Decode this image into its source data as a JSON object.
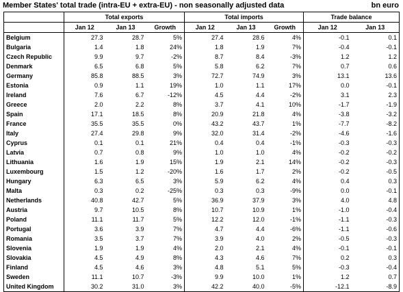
{
  "title": "Member States' total trade (intra-EU + extra-EU) - non seasonally adjusted data",
  "units": "bn euro",
  "groups": {
    "exports": "Total exports",
    "imports": "Total imports",
    "balance": "Trade balance"
  },
  "subheaders": {
    "jan12": "Jan 12",
    "jan13": "Jan 13",
    "growth": "Growth"
  },
  "rows": [
    {
      "country": "Belgium",
      "ex12": "27.3",
      "ex13": "28.7",
      "exg": "5%",
      "im12": "27.4",
      "im13": "28.6",
      "img": "4%",
      "tb12": "-0.1",
      "tb13": "0.1"
    },
    {
      "country": "Bulgaria",
      "ex12": "1.4",
      "ex13": "1.8",
      "exg": "24%",
      "im12": "1.8",
      "im13": "1.9",
      "img": "7%",
      "tb12": "-0.4",
      "tb13": "-0.1"
    },
    {
      "country": "Czech Republic",
      "ex12": "9.9",
      "ex13": "9.7",
      "exg": "-2%",
      "im12": "8.7",
      "im13": "8.4",
      "img": "-3%",
      "tb12": "1.2",
      "tb13": "1.2"
    },
    {
      "country": "Denmark",
      "ex12": "6.5",
      "ex13": "6.8",
      "exg": "5%",
      "im12": "5.8",
      "im13": "6.2",
      "img": "7%",
      "tb12": "0.7",
      "tb13": "0.6"
    },
    {
      "country": "Germany",
      "ex12": "85.8",
      "ex13": "88.5",
      "exg": "3%",
      "im12": "72.7",
      "im13": "74.9",
      "img": "3%",
      "tb12": "13.1",
      "tb13": "13.6"
    },
    {
      "country": "Estonia",
      "ex12": "0.9",
      "ex13": "1.1",
      "exg": "19%",
      "im12": "1.0",
      "im13": "1.1",
      "img": "17%",
      "tb12": "0.0",
      "tb13": "-0.1"
    },
    {
      "country": "Ireland",
      "ex12": "7.6",
      "ex13": "6.7",
      "exg": "-12%",
      "im12": "4.5",
      "im13": "4.4",
      "img": "-2%",
      "tb12": "3.1",
      "tb13": "2.3"
    },
    {
      "country": "Greece",
      "ex12": "2.0",
      "ex13": "2.2",
      "exg": "8%",
      "im12": "3.7",
      "im13": "4.1",
      "img": "10%",
      "tb12": "-1.7",
      "tb13": "-1.9"
    },
    {
      "country": "Spain",
      "ex12": "17.1",
      "ex13": "18.5",
      "exg": "8%",
      "im12": "20.9",
      "im13": "21.8",
      "img": "4%",
      "tb12": "-3.8",
      "tb13": "-3.2"
    },
    {
      "country": "France",
      "ex12": "35.5",
      "ex13": "35.5",
      "exg": "0%",
      "im12": "43.2",
      "im13": "43.7",
      "img": "1%",
      "tb12": "-7.7",
      "tb13": "-8.2"
    },
    {
      "country": "Italy",
      "ex12": "27.4",
      "ex13": "29.8",
      "exg": "9%",
      "im12": "32.0",
      "im13": "31.4",
      "img": "-2%",
      "tb12": "-4.6",
      "tb13": "-1.6"
    },
    {
      "country": "Cyprus",
      "ex12": "0.1",
      "ex13": "0.1",
      "exg": "21%",
      "im12": "0.4",
      "im13": "0.4",
      "img": "-1%",
      "tb12": "-0.3",
      "tb13": "-0.3"
    },
    {
      "country": "Latvia",
      "ex12": "0.7",
      "ex13": "0.8",
      "exg": "9%",
      "im12": "1.0",
      "im13": "1.0",
      "img": "4%",
      "tb12": "-0.2",
      "tb13": "-0.2"
    },
    {
      "country": "Lithuania",
      "ex12": "1.6",
      "ex13": "1.9",
      "exg": "15%",
      "im12": "1.9",
      "im13": "2.1",
      "img": "14%",
      "tb12": "-0.2",
      "tb13": "-0.3"
    },
    {
      "country": "Luxembourg",
      "ex12": "1.5",
      "ex13": "1.2",
      "exg": "-20%",
      "im12": "1.6",
      "im13": "1.7",
      "img": "2%",
      "tb12": "-0.2",
      "tb13": "-0.5"
    },
    {
      "country": "Hungary",
      "ex12": "6.3",
      "ex13": "6.5",
      "exg": "3%",
      "im12": "5.9",
      "im13": "6.2",
      "img": "4%",
      "tb12": "0.4",
      "tb13": "0.3"
    },
    {
      "country": "Malta",
      "ex12": "0.3",
      "ex13": "0.2",
      "exg": "-25%",
      "im12": "0.3",
      "im13": "0.3",
      "img": "-9%",
      "tb12": "0.0",
      "tb13": "-0.1"
    },
    {
      "country": "Netherlands",
      "ex12": "40.8",
      "ex13": "42.7",
      "exg": "5%",
      "im12": "36.9",
      "im13": "37.9",
      "img": "3%",
      "tb12": "4.0",
      "tb13": "4.8"
    },
    {
      "country": "Austria",
      "ex12": "9.7",
      "ex13": "10.5",
      "exg": "8%",
      "im12": "10.7",
      "im13": "10.9",
      "img": "1%",
      "tb12": "-1.0",
      "tb13": "-0.4"
    },
    {
      "country": "Poland",
      "ex12": "11.1",
      "ex13": "11.7",
      "exg": "5%",
      "im12": "12.2",
      "im13": "12.0",
      "img": "-1%",
      "tb12": "-1.1",
      "tb13": "-0.3"
    },
    {
      "country": "Portugal",
      "ex12": "3.6",
      "ex13": "3.9",
      "exg": "7%",
      "im12": "4.7",
      "im13": "4.4",
      "img": "-6%",
      "tb12": "-1.1",
      "tb13": "-0.6"
    },
    {
      "country": "Romania",
      "ex12": "3.5",
      "ex13": "3.7",
      "exg": "7%",
      "im12": "3.9",
      "im13": "4.0",
      "img": "2%",
      "tb12": "-0.5",
      "tb13": "-0.3"
    },
    {
      "country": "Slovenia",
      "ex12": "1.9",
      "ex13": "1.9",
      "exg": "4%",
      "im12": "2.0",
      "im13": "2.1",
      "img": "4%",
      "tb12": "-0.1",
      "tb13": "-0.1"
    },
    {
      "country": "Slovakia",
      "ex12": "4.5",
      "ex13": "4.9",
      "exg": "8%",
      "im12": "4.3",
      "im13": "4.6",
      "img": "7%",
      "tb12": "0.2",
      "tb13": "0.3"
    },
    {
      "country": "Finland",
      "ex12": "4.5",
      "ex13": "4.6",
      "exg": "3%",
      "im12": "4.8",
      "im13": "5.1",
      "img": "5%",
      "tb12": "-0.3",
      "tb13": "-0.4"
    },
    {
      "country": "Sweden",
      "ex12": "11.1",
      "ex13": "10.7",
      "exg": "-3%",
      "im12": "9.9",
      "im13": "10.0",
      "img": "1%",
      "tb12": "1.2",
      "tb13": "0.7"
    },
    {
      "country": "United Kingdom",
      "ex12": "30.2",
      "ex13": "31.0",
      "exg": "3%",
      "im12": "42.2",
      "im13": "40.0",
      "img": "-5%",
      "tb12": "-12.1",
      "tb13": "-8.9"
    }
  ]
}
